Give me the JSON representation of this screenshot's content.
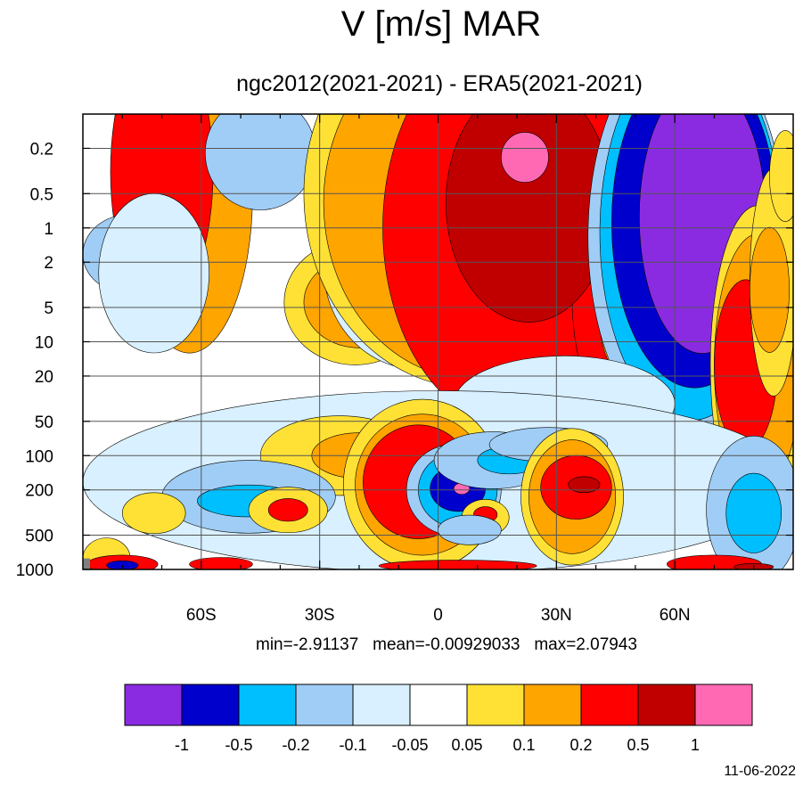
{
  "chart_data": {
    "type": "heatmap",
    "title": "V [m/s] MAR",
    "subtitle": "ngc2012(2021-2021) - ERA5(2021-2021)",
    "x_ticks": [
      "60S",
      "30S",
      "0",
      "30N",
      "60N"
    ],
    "x_tick_values": [
      -60,
      -30,
      0,
      30,
      60
    ],
    "xlim": [
      -90,
      90
    ],
    "y_ticks": [
      "0.2",
      "0.5",
      "1",
      "2",
      "5",
      "10",
      "20",
      "50",
      "100",
      "200",
      "500",
      "1000"
    ],
    "y_tick_values": [
      0.2,
      0.5,
      1,
      2,
      5,
      10,
      20,
      50,
      100,
      200,
      500,
      1000
    ],
    "ylim": [
      0.1,
      1000
    ],
    "y_scale": "log",
    "y_inverted": true,
    "grid": true,
    "stats_text": "min=-2.91137   mean=-0.00929033   max=2.07943",
    "colorbar": {
      "levels": [
        "-1",
        "-0.5",
        "-0.2",
        "-0.1",
        "-0.05",
        "0.05",
        "0.1",
        "0.2",
        "0.5",
        "1"
      ],
      "colors": [
        "#8a2be2",
        "#0000cd",
        "#00bfff",
        "#a0cdf5",
        "#d8f0ff",
        "#ffffff",
        "#ffe135",
        "#ffa500",
        "#ff0000",
        "#c00000",
        "#ff69b4"
      ]
    },
    "date": "11-06-2022",
    "regions": [
      {
        "c": "#ffa500",
        "cx": -63,
        "cy": 0.5,
        "rx": 16,
        "ry": 1.4
      },
      {
        "c": "#ff0000",
        "cx": -70,
        "cy": 0.32,
        "rx": 13,
        "ry": 1.2
      },
      {
        "c": "#a0cdf5",
        "cx": -78,
        "cy": 1.7,
        "rx": 12,
        "ry": 0.35
      },
      {
        "c": "#d8f0ff",
        "cx": -72,
        "cy": 2.5,
        "rx": 14,
        "ry": 0.7
      },
      {
        "c": "#a0cdf5",
        "cx": -45,
        "cy": 0.22,
        "rx": 14,
        "ry": 0.5
      },
      {
        "c": "#d8f0ff",
        "cx": -20,
        "cy": 0.8,
        "rx": 10,
        "ry": 0.7
      },
      {
        "c": "#ffe135",
        "cx": -21,
        "cy": 4.5,
        "rx": 18,
        "ry": 0.55
      },
      {
        "c": "#ffa500",
        "cx": -20,
        "cy": 4.5,
        "rx": 14,
        "ry": 0.4
      },
      {
        "c": "#ff0000",
        "cx": -18,
        "cy": 4.7,
        "rx": 8,
        "ry": 0.22
      },
      {
        "c": "#d8f0ff",
        "cx": -5,
        "cy": 2.2,
        "rx": 24,
        "ry": 0.9
      },
      {
        "c": "#a0cdf5",
        "cx": 6,
        "cy": 2.8,
        "rx": 25,
        "ry": 0.55
      },
      {
        "c": "#00bfff",
        "cx": 6,
        "cy": 3.0,
        "rx": 18,
        "ry": 0.3
      },
      {
        "c": "#d8f0ff",
        "cx": 12,
        "cy": 10,
        "rx": 14,
        "ry": 0.7
      },
      {
        "c": "#ffe135",
        "cx": 8,
        "cy": 0.5,
        "rx": 42,
        "ry": 1.7
      },
      {
        "c": "#ffa500",
        "cx": 9,
        "cy": 0.6,
        "rx": 38,
        "ry": 1.55
      },
      {
        "c": "#ff0000",
        "cx": 20,
        "cy": 1.0,
        "rx": 34,
        "ry": 1.75
      },
      {
        "c": "#ff0000",
        "cx": 43,
        "cy": 4.2,
        "rx": 9,
        "ry": 0.9
      },
      {
        "c": "#c00000",
        "cx": 23,
        "cy": 0.6,
        "rx": 21,
        "ry": 1.05
      },
      {
        "c": "#ff69b4",
        "cx": 22,
        "cy": 0.24,
        "rx": 6,
        "ry": 0.22
      },
      {
        "c": "#ffa500",
        "cx": 50,
        "cy": 6.5,
        "rx": 9,
        "ry": 0.55
      },
      {
        "c": "#a0cdf5",
        "cx": 63,
        "cy": 1.2,
        "rx": 25,
        "ry": 1.75
      },
      {
        "c": "#00bfff",
        "cx": 64,
        "cy": 1.1,
        "rx": 23,
        "ry": 1.65
      },
      {
        "c": "#0000cd",
        "cx": 65,
        "cy": 0.9,
        "rx": 21,
        "ry": 1.45
      },
      {
        "c": "#8a2be2",
        "cx": 67,
        "cy": 0.8,
        "rx": 16,
        "ry": 1.2
      },
      {
        "c": "#ffe135",
        "cx": 81,
        "cy": 16,
        "rx": 12,
        "ry": 1.4
      },
      {
        "c": "#ffa500",
        "cx": 81,
        "cy": 16,
        "rx": 11,
        "ry": 1.15
      },
      {
        "c": "#ff0000",
        "cx": 78,
        "cy": 16,
        "rx": 8,
        "ry": 0.75
      },
      {
        "c": "#ffe135",
        "cx": 85,
        "cy": 3,
        "rx": 6,
        "ry": 1.0
      },
      {
        "c": "#ffa500",
        "cx": 84,
        "cy": 3.5,
        "rx": 5,
        "ry": 0.55
      },
      {
        "c": "#ffe135",
        "cx": 88,
        "cy": 0.35,
        "rx": 4,
        "ry": 0.4
      },
      {
        "c": "#d8f0ff",
        "cx": 32,
        "cy": 35,
        "rx": 28,
        "ry": 0.42
      },
      {
        "c": "#ffe135",
        "cx": 5,
        "cy": 50,
        "rx": 9,
        "ry": 0.25
      },
      {
        "c": "#d8f0ff",
        "cx": -12,
        "cy": 45,
        "rx": 10,
        "ry": 0.2
      },
      {
        "c": "#d8f0ff",
        "cx": 0,
        "cy": 170,
        "rx": 90,
        "ry": 0.8
      },
      {
        "c": "#ffe135",
        "cx": -25,
        "cy": 100,
        "rx": 20,
        "ry": 0.35
      },
      {
        "c": "#ffa500",
        "cx": -20,
        "cy": 100,
        "rx": 12,
        "ry": 0.2
      },
      {
        "c": "#a0cdf5",
        "cx": -48,
        "cy": 230,
        "rx": 22,
        "ry": 0.32
      },
      {
        "c": "#00bfff",
        "cx": -48,
        "cy": 250,
        "rx": 13,
        "ry": 0.14
      },
      {
        "c": "#ffe135",
        "cx": -4,
        "cy": 180,
        "rx": 20,
        "ry": 0.75
      },
      {
        "c": "#ffa500",
        "cx": -4,
        "cy": 180,
        "rx": 17,
        "ry": 0.62
      },
      {
        "c": "#ff0000",
        "cx": -5,
        "cy": 170,
        "rx": 14,
        "ry": 0.5
      },
      {
        "c": "#a0cdf5",
        "cx": 4,
        "cy": 200,
        "rx": 12,
        "ry": 0.4
      },
      {
        "c": "#00bfff",
        "cx": 5,
        "cy": 200,
        "rx": 10,
        "ry": 0.33
      },
      {
        "c": "#0000cd",
        "cx": 5,
        "cy": 195,
        "rx": 7,
        "ry": 0.2
      },
      {
        "c": "#ff69b4",
        "cx": 6,
        "cy": 195,
        "rx": 2,
        "ry": 0.05
      },
      {
        "c": "#ffe135",
        "cx": -38,
        "cy": 300,
        "rx": 10,
        "ry": 0.2
      },
      {
        "c": "#ff0000",
        "cx": -38,
        "cy": 300,
        "rx": 5,
        "ry": 0.1
      },
      {
        "c": "#ffe135",
        "cx": -72,
        "cy": 320,
        "rx": 8,
        "ry": 0.18
      },
      {
        "c": "#a0cdf5",
        "cx": 14,
        "cy": 110,
        "rx": 15,
        "ry": 0.25
      },
      {
        "c": "#00bfff",
        "cx": 18,
        "cy": 110,
        "rx": 8,
        "ry": 0.12
      },
      {
        "c": "#a0cdf5",
        "cx": 28,
        "cy": 80,
        "rx": 15,
        "ry": 0.15
      },
      {
        "c": "#ffe135",
        "cx": 34,
        "cy": 230,
        "rx": 13,
        "ry": 0.6
      },
      {
        "c": "#ffa500",
        "cx": 34,
        "cy": 230,
        "rx": 11,
        "ry": 0.5
      },
      {
        "c": "#ff0000",
        "cx": 35,
        "cy": 190,
        "rx": 9,
        "ry": 0.28
      },
      {
        "c": "#c00000",
        "cx": 37,
        "cy": 180,
        "rx": 4,
        "ry": 0.07
      },
      {
        "c": "#ffe135",
        "cx": 12,
        "cy": 350,
        "rx": 6,
        "ry": 0.16
      },
      {
        "c": "#ff0000",
        "cx": 12,
        "cy": 330,
        "rx": 3,
        "ry": 0.07
      },
      {
        "c": "#0000cd",
        "cx": 7,
        "cy": 420,
        "rx": 4,
        "ry": 0.07
      },
      {
        "c": "#a0cdf5",
        "cx": 8,
        "cy": 450,
        "rx": 8,
        "ry": 0.13
      },
      {
        "c": "#a0cdf5",
        "cx": 80,
        "cy": 300,
        "rx": 12,
        "ry": 0.65
      },
      {
        "c": "#00bfff",
        "cx": 80,
        "cy": 320,
        "rx": 7,
        "ry": 0.35
      },
      {
        "c": "#ffe135",
        "cx": -84,
        "cy": 800,
        "rx": 6,
        "ry": 0.18
      },
      {
        "c": "#ff0000",
        "cx": -80,
        "cy": 900,
        "rx": 9,
        "ry": 0.08
      },
      {
        "c": "#0000cd",
        "cx": -80,
        "cy": 920,
        "rx": 4,
        "ry": 0.04
      },
      {
        "c": "#ff0000",
        "cx": -55,
        "cy": 900,
        "rx": 8,
        "ry": 0.06
      },
      {
        "c": "#ff0000",
        "cx": 5,
        "cy": 930,
        "rx": 20,
        "ry": 0.05
      },
      {
        "c": "#ff0000",
        "cx": 70,
        "cy": 900,
        "rx": 12,
        "ry": 0.08
      },
      {
        "c": "#c00000",
        "cx": 80,
        "cy": 950,
        "rx": 5,
        "ry": 0.03
      }
    ]
  }
}
